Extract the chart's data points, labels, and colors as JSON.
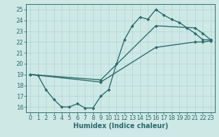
{
  "xlabel": "Humidex (Indice chaleur)",
  "background_color": "#cde8e5",
  "grid_color": "#aed4d0",
  "line_color": "#2a6b6b",
  "xlim": [
    -0.5,
    23.5
  ],
  "ylim": [
    15.5,
    25.5
  ],
  "xticks": [
    0,
    1,
    2,
    3,
    4,
    5,
    6,
    7,
    8,
    9,
    10,
    11,
    12,
    13,
    14,
    15,
    16,
    17,
    18,
    19,
    20,
    21,
    22,
    23
  ],
  "yticks": [
    16,
    17,
    18,
    19,
    20,
    21,
    22,
    23,
    24,
    25
  ],
  "series1_x": [
    0,
    1,
    2,
    3,
    4,
    5,
    6,
    7,
    8,
    9,
    10,
    11,
    12,
    13,
    14,
    15,
    16,
    17,
    18,
    19,
    20,
    21,
    22,
    23
  ],
  "series1_y": [
    19.0,
    18.9,
    17.6,
    16.7,
    16.0,
    16.0,
    16.3,
    15.9,
    15.9,
    17.0,
    17.6,
    20.0,
    22.2,
    23.5,
    24.3,
    24.1,
    25.0,
    24.5,
    24.1,
    23.8,
    23.3,
    22.8,
    22.2,
    22.2
  ],
  "series2_x": [
    0,
    9,
    16,
    21,
    22,
    23
  ],
  "series2_y": [
    19.0,
    18.5,
    23.5,
    23.3,
    22.8,
    22.2
  ],
  "series3_x": [
    0,
    9,
    16,
    21,
    22,
    23
  ],
  "series3_y": [
    19.0,
    18.3,
    21.5,
    22.0,
    22.0,
    22.1
  ],
  "marker": "D",
  "markersize": 2.5,
  "linewidth": 1.0,
  "xlabel_fontsize": 7,
  "tick_fontsize": 6
}
